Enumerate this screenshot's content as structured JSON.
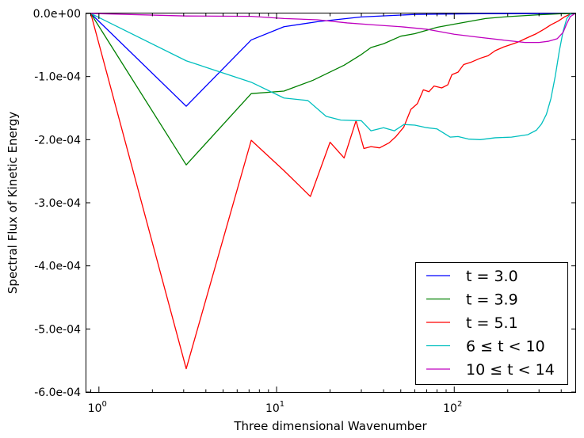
{
  "chart_data": {
    "type": "line",
    "title": "",
    "xlabel": "Three dimensional Wavenumber",
    "ylabel": "Spectral Flux of Kinetic Energy",
    "xscale": "log",
    "xlim": [
      0.85,
      480
    ],
    "ylim": [
      -0.0006,
      0
    ],
    "grid": false,
    "legend_position": "lower-right",
    "x_ticks": [
      {
        "value": 1,
        "base": "10",
        "exp": "0"
      },
      {
        "value": 10,
        "base": "10",
        "exp": "1"
      },
      {
        "value": 100,
        "base": "10",
        "exp": "2"
      }
    ],
    "y_ticks": [
      {
        "value": 0,
        "label": "0.0e+00"
      },
      {
        "value": -0.0001,
        "label": "-1.0e-04"
      },
      {
        "value": -0.0002,
        "label": "-2.0e-04"
      },
      {
        "value": -0.0003,
        "label": "-3.0e-04"
      },
      {
        "value": -0.0004,
        "label": "-4.0e-04"
      },
      {
        "value": -0.0005,
        "label": "-5.0e-04"
      },
      {
        "value": -0.0006,
        "label": "-6.0e-04"
      }
    ],
    "series": [
      {
        "name": "t = 3.0",
        "color": "#0000ff",
        "points": [
          [
            0.9,
            0
          ],
          [
            3.1,
            -0.000147
          ],
          [
            7.2,
            -4.2e-05
          ],
          [
            11,
            -2.1e-05
          ],
          [
            17,
            -1.3e-05
          ],
          [
            30,
            -5.5e-06
          ],
          [
            60,
            -1.5e-06
          ],
          [
            150,
            -3e-07
          ],
          [
            480,
            0
          ]
        ]
      },
      {
        "name": "t = 3.9",
        "color": "#008000",
        "points": [
          [
            0.9,
            0
          ],
          [
            3.1,
            -0.00024
          ],
          [
            7.2,
            -0.000127
          ],
          [
            11,
            -0.000123
          ],
          [
            16,
            -0.000106
          ],
          [
            24,
            -8.2e-05
          ],
          [
            30,
            -6.5e-05
          ],
          [
            34,
            -5.4e-05
          ],
          [
            40,
            -4.8e-05
          ],
          [
            50,
            -3.6e-05
          ],
          [
            60,
            -3.2e-05
          ],
          [
            80,
            -2.2e-05
          ],
          [
            100,
            -1.7e-05
          ],
          [
            150,
            -8e-06
          ],
          [
            200,
            -5e-06
          ],
          [
            300,
            -2e-06
          ],
          [
            400,
            -5e-07
          ],
          [
            480,
            0
          ]
        ]
      },
      {
        "name": "t = 5.1",
        "color": "#ff0000",
        "points": [
          [
            0.9,
            0
          ],
          [
            3.1,
            -0.000563
          ],
          [
            7.2,
            -0.000201
          ],
          [
            11,
            -0.000249
          ],
          [
            15.5,
            -0.00029
          ],
          [
            20,
            -0.000204
          ],
          [
            24,
            -0.000229
          ],
          [
            28,
            -0.00017
          ],
          [
            31,
            -0.000214
          ],
          [
            34,
            -0.000211
          ],
          [
            38,
            -0.000213
          ],
          [
            43,
            -0.000205
          ],
          [
            47,
            -0.000195
          ],
          [
            52,
            -0.00018
          ],
          [
            57,
            -0.000152
          ],
          [
            62,
            -0.000143
          ],
          [
            67,
            -0.000121
          ],
          [
            72,
            -0.000124
          ],
          [
            77,
            -0.000115
          ],
          [
            85,
            -0.000118
          ],
          [
            92,
            -0.000113
          ],
          [
            97,
            -9.7e-05
          ],
          [
            105,
            -9.3e-05
          ],
          [
            113,
            -8.1e-05
          ],
          [
            125,
            -7.7e-05
          ],
          [
            140,
            -7.1e-05
          ],
          [
            155,
            -6.7e-05
          ],
          [
            170,
            -5.9e-05
          ],
          [
            190,
            -5.3e-05
          ],
          [
            210,
            -4.9e-05
          ],
          [
            230,
            -4.5e-05
          ],
          [
            260,
            -3.8e-05
          ],
          [
            290,
            -3.2e-05
          ],
          [
            320,
            -2.5e-05
          ],
          [
            350,
            -1.8e-05
          ],
          [
            385,
            -1.2e-05
          ],
          [
            420,
            -5e-06
          ],
          [
            450,
            -1e-06
          ],
          [
            480,
            0
          ]
        ]
      },
      {
        "name": "6 ≤ t < 10",
        "color": "#00bfbf",
        "points": [
          [
            0.9,
            0
          ],
          [
            3.1,
            -7.5e-05
          ],
          [
            7.2,
            -0.000109
          ],
          [
            11,
            -0.000134
          ],
          [
            15,
            -0.000138
          ],
          [
            19,
            -0.000163
          ],
          [
            23,
            -0.000169
          ],
          [
            30,
            -0.00017
          ],
          [
            34,
            -0.000186
          ],
          [
            40,
            -0.000181
          ],
          [
            46,
            -0.000186
          ],
          [
            52,
            -0.000176
          ],
          [
            60,
            -0.000177
          ],
          [
            70,
            -0.000181
          ],
          [
            80,
            -0.000183
          ],
          [
            95,
            -0.000196
          ],
          [
            105,
            -0.000195
          ],
          [
            120,
            -0.000199
          ],
          [
            140,
            -0.0002
          ],
          [
            170,
            -0.000197
          ],
          [
            210,
            -0.000196
          ],
          [
            260,
            -0.000192
          ],
          [
            290,
            -0.000185
          ],
          [
            310,
            -0.000175
          ],
          [
            330,
            -0.00016
          ],
          [
            350,
            -0.000135
          ],
          [
            370,
            -0.0001
          ],
          [
            390,
            -6e-05
          ],
          [
            410,
            -2.8e-05
          ],
          [
            430,
            -8e-06
          ],
          [
            450,
            -1e-06
          ],
          [
            480,
            0
          ]
        ]
      },
      {
        "name": "10 ≤ t < 14",
        "color": "#bf00bf",
        "points": [
          [
            0.9,
            0
          ],
          [
            3.1,
            -4e-06
          ],
          [
            7.2,
            -4.5e-06
          ],
          [
            11,
            -8e-06
          ],
          [
            17,
            -1e-05
          ],
          [
            25,
            -1.5e-05
          ],
          [
            35,
            -1.8e-05
          ],
          [
            50,
            -2.1e-05
          ],
          [
            70,
            -2.5e-05
          ],
          [
            100,
            -3.3e-05
          ],
          [
            140,
            -3.8e-05
          ],
          [
            200,
            -4.3e-05
          ],
          [
            250,
            -4.6e-05
          ],
          [
            300,
            -4.6e-05
          ],
          [
            340,
            -4.4e-05
          ],
          [
            380,
            -4e-05
          ],
          [
            410,
            -3e-05
          ],
          [
            430,
            -1.6e-05
          ],
          [
            450,
            -5e-06
          ],
          [
            480,
            0
          ]
        ]
      }
    ]
  }
}
